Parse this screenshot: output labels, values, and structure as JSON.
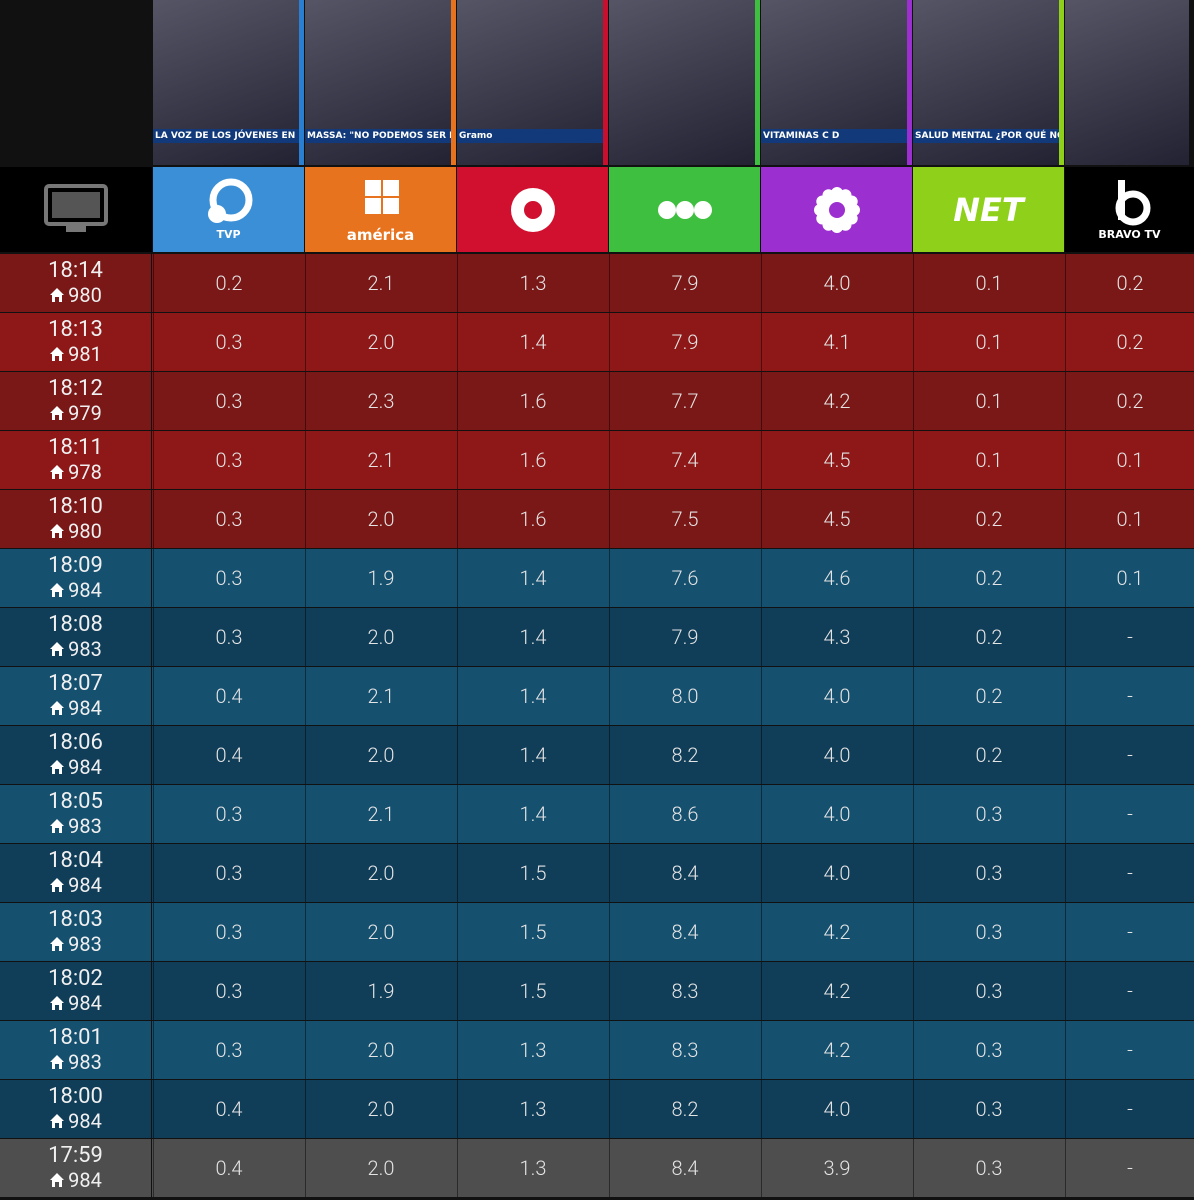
{
  "thumbnails": [
    {
      "caption": "LA VOZ DE LOS JÓVENES EN LOS MEDIOS",
      "color": "#2a7fd0"
    },
    {
      "caption": "MASSA: \"NO PODEMOS SER REHENES DE CA",
      "color": "#e8731f"
    },
    {
      "caption": "Gramo",
      "color": "#c8102e"
    },
    {
      "caption": "",
      "color": "#3fbf3f"
    },
    {
      "caption": "VITAMINAS C D",
      "color": "#9b2fd0"
    },
    {
      "caption": "SALUD MENTAL ¿POR QUÉ NO ES COSAS",
      "color": "#8fd11a"
    },
    {
      "caption": "",
      "color": "#111111"
    }
  ],
  "channels": [
    {
      "label": "TVP",
      "color": "#3a8fd6",
      "icon": "ring2"
    },
    {
      "label": "américa",
      "color": "#e8731f",
      "icon": "grid"
    },
    {
      "color": "#d0102e",
      "icon": "ring"
    },
    {
      "color": "#3fbf3f",
      "icon": "dots"
    },
    {
      "color": "#9b2fd0",
      "icon": "sun"
    },
    {
      "label": "NET",
      "color": "#8fd11a",
      "icon": "text"
    },
    {
      "label": "BRAVO TV",
      "color": "#000000",
      "icon": "b"
    }
  ],
  "rows": [
    {
      "time": "18:14",
      "homes": "980",
      "color": "#7a1717",
      "values": [
        "0.2",
        "2.1",
        "1.3",
        "7.9",
        "4.0",
        "0.1",
        "0.2"
      ]
    },
    {
      "time": "18:13",
      "homes": "981",
      "color": "#8e1818",
      "values": [
        "0.3",
        "2.0",
        "1.4",
        "7.9",
        "4.1",
        "0.1",
        "0.2"
      ]
    },
    {
      "time": "18:12",
      "homes": "979",
      "color": "#7a1717",
      "values": [
        "0.3",
        "2.3",
        "1.6",
        "7.7",
        "4.2",
        "0.1",
        "0.2"
      ]
    },
    {
      "time": "18:11",
      "homes": "978",
      "color": "#8e1818",
      "values": [
        "0.3",
        "2.1",
        "1.6",
        "7.4",
        "4.5",
        "0.1",
        "0.1"
      ]
    },
    {
      "time": "18:10",
      "homes": "980",
      "color": "#7a1717",
      "values": [
        "0.3",
        "2.0",
        "1.6",
        "7.5",
        "4.5",
        "0.2",
        "0.1"
      ]
    },
    {
      "time": "18:09",
      "homes": "984",
      "color": "#15506f",
      "values": [
        "0.3",
        "1.9",
        "1.4",
        "7.6",
        "4.6",
        "0.2",
        "0.1"
      ]
    },
    {
      "time": "18:08",
      "homes": "983",
      "color": "#103d58",
      "values": [
        "0.3",
        "2.0",
        "1.4",
        "7.9",
        "4.3",
        "0.2",
        "-"
      ]
    },
    {
      "time": "18:07",
      "homes": "984",
      "color": "#15506f",
      "values": [
        "0.4",
        "2.1",
        "1.4",
        "8.0",
        "4.0",
        "0.2",
        "-"
      ]
    },
    {
      "time": "18:06",
      "homes": "984",
      "color": "#103d58",
      "values": [
        "0.4",
        "2.0",
        "1.4",
        "8.2",
        "4.0",
        "0.2",
        "-"
      ]
    },
    {
      "time": "18:05",
      "homes": "983",
      "color": "#15506f",
      "values": [
        "0.3",
        "2.1",
        "1.4",
        "8.6",
        "4.0",
        "0.3",
        "-"
      ]
    },
    {
      "time": "18:04",
      "homes": "984",
      "color": "#103d58",
      "values": [
        "0.3",
        "2.0",
        "1.5",
        "8.4",
        "4.0",
        "0.3",
        "-"
      ]
    },
    {
      "time": "18:03",
      "homes": "983",
      "color": "#15506f",
      "values": [
        "0.3",
        "2.0",
        "1.5",
        "8.4",
        "4.2",
        "0.3",
        "-"
      ]
    },
    {
      "time": "18:02",
      "homes": "984",
      "color": "#103d58",
      "values": [
        "0.3",
        "1.9",
        "1.5",
        "8.3",
        "4.2",
        "0.3",
        "-"
      ]
    },
    {
      "time": "18:01",
      "homes": "983",
      "color": "#15506f",
      "values": [
        "0.3",
        "2.0",
        "1.3",
        "8.3",
        "4.2",
        "0.3",
        "-"
      ]
    },
    {
      "time": "18:00",
      "homes": "984",
      "color": "#103d58",
      "values": [
        "0.4",
        "2.0",
        "1.3",
        "8.2",
        "4.0",
        "0.3",
        "-"
      ]
    },
    {
      "time": "17:59",
      "homes": "984",
      "color": "#4e4e4e",
      "values": [
        "0.4",
        "2.0",
        "1.3",
        "8.4",
        "3.9",
        "0.3",
        "-"
      ]
    }
  ]
}
